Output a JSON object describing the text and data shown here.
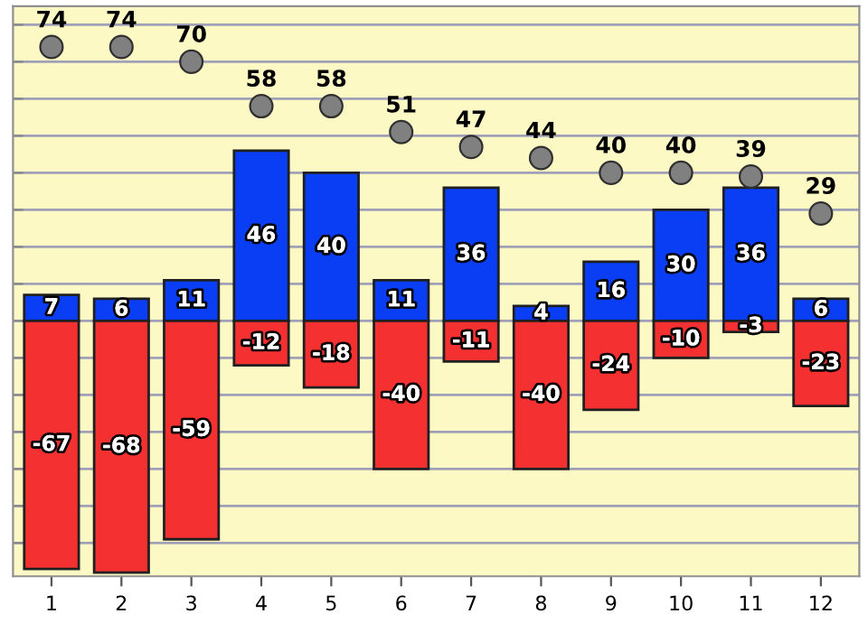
{
  "chart_data": {
    "type": "bar",
    "categories": [
      "1",
      "2",
      "3",
      "4",
      "5",
      "6",
      "7",
      "8",
      "9",
      "10",
      "11",
      "12"
    ],
    "series": [
      {
        "color": "#0a3ef5",
        "values": [
          7,
          6,
          11,
          46,
          40,
          11,
          36,
          4,
          16,
          30,
          36,
          6
        ]
      },
      {
        "color": "#f53030",
        "values": [
          -67,
          -68,
          -59,
          -12,
          -18,
          -40,
          -11,
          -40,
          -24,
          -10,
          -3,
          -23
        ]
      },
      {
        "type": "scatter",
        "color": "#808080",
        "x": [
          "1",
          "2",
          "3",
          "4",
          "5",
          "6",
          "7",
          "8",
          "9",
          "10",
          "11",
          "12"
        ],
        "values": [
          74,
          74,
          70,
          58,
          58,
          51,
          47,
          44,
          40,
          40,
          39,
          29
        ]
      }
    ],
    "ylim": [
      -69,
      85
    ],
    "yticks": [
      {
        "value": -60,
        "label": null
      },
      {
        "value": -50,
        "label": null
      },
      {
        "value": -40,
        "label": null
      },
      {
        "value": -30,
        "label": null
      },
      {
        "value": -20,
        "label": null
      },
      {
        "value": -10,
        "label": null
      },
      {
        "value": 0,
        "label": null
      },
      {
        "value": 10,
        "label": null
      },
      {
        "value": 20,
        "label": null
      },
      {
        "value": 30,
        "label": null
      },
      {
        "value": 40,
        "label": null
      },
      {
        "value": 50,
        "label": null
      },
      {
        "value": 60,
        "label": null
      },
      {
        "value": 70,
        "label": null
      },
      {
        "value": 80,
        "label": null
      }
    ],
    "stacked": true,
    "grid": "y",
    "tick_labels": "x",
    "data_labels": true,
    "marker": "circle",
    "legend": false
  }
}
